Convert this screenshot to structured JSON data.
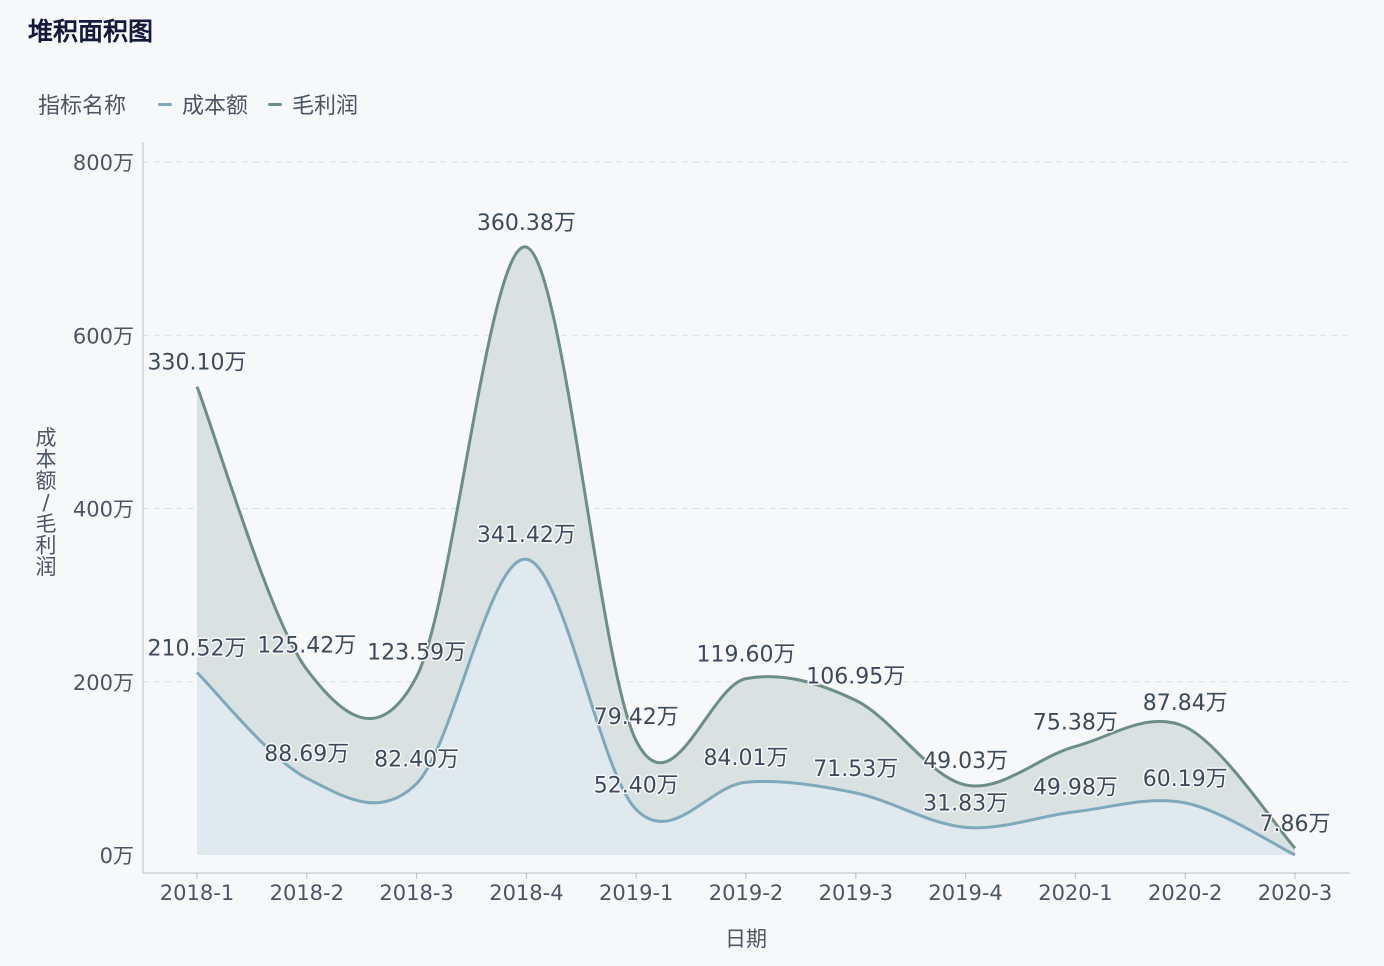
{
  "title": "堆积面积图",
  "legend": {
    "name": "指标名称",
    "items": [
      {
        "label": "成本额",
        "color": "#7da9bd"
      },
      {
        "label": "毛利润",
        "color": "#6b8e85"
      }
    ]
  },
  "chart_data": {
    "type": "area",
    "stacked": true,
    "title": "堆积面积图",
    "xlabel": "日期",
    "ylabel": "成本额/毛利润",
    "ylim": [
      0,
      800
    ],
    "yticks": [
      0,
      200,
      400,
      600,
      800
    ],
    "unit": "万",
    "grid": true,
    "legend_position": "top-left",
    "categories": [
      "2018-1",
      "2018-2",
      "2018-3",
      "2018-4",
      "2019-1",
      "2019-2",
      "2019-3",
      "2019-4",
      "2020-1",
      "2020-2",
      "2020-3"
    ],
    "series": [
      {
        "name": "成本额",
        "color": "#7da9bd",
        "fill": "#dfe9ee",
        "values": [
          210.52,
          88.69,
          82.4,
          341.42,
          52.4,
          84.01,
          71.53,
          31.83,
          49.98,
          60.19,
          0
        ],
        "labels": [
          "210.52万",
          "88.69万",
          "82.40万",
          "341.42万",
          "52.40万",
          "84.01万",
          "71.53万",
          "31.83万",
          "49.98万",
          "60.19万",
          ""
        ]
      },
      {
        "name": "毛利润",
        "color": "#6b8e85",
        "fill": "#d9e2e1",
        "values": [
          330.1,
          125.42,
          123.59,
          360.38,
          79.42,
          119.6,
          106.95,
          49.03,
          75.38,
          87.84,
          7.86
        ],
        "labels": [
          "330.10万",
          "125.42万",
          "123.59万",
          "360.38万",
          "79.42万",
          "119.60万",
          "106.95万",
          "49.03万",
          "75.38万",
          "87.84万",
          "7.86万"
        ]
      }
    ]
  }
}
